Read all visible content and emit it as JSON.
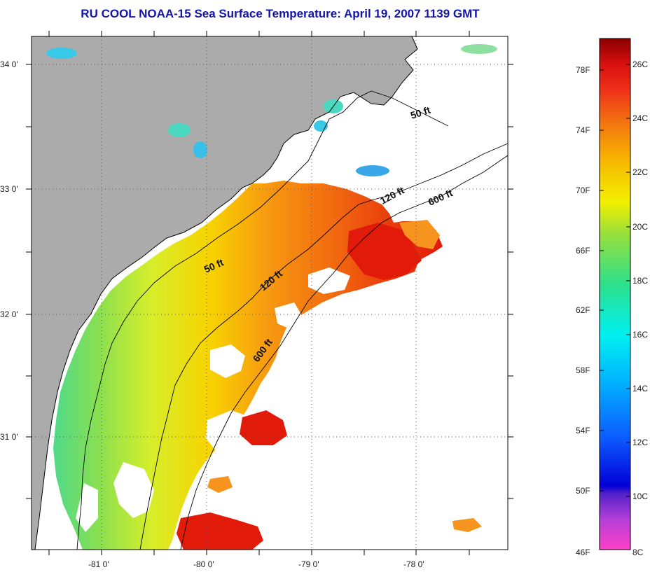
{
  "title": "RU COOL  NOAA-15  Sea Surface Temperature:  April 19, 2007 1139 GMT",
  "map": {
    "lon_labels": [
      "-81 0'",
      "-80 0'",
      "-79 0'",
      "-78 0'"
    ],
    "lat_labels": [
      "34 0'",
      "33 0'",
      "32 0'",
      "31 0'"
    ],
    "contour_labels": {
      "c50_north": "50 ft",
      "c120_north": "120 ft",
      "c600_north": "600 ft",
      "c50_mid": "50 ft",
      "c120_mid": "120 ft",
      "c600_mid": "600 ft"
    },
    "colors": {
      "land": "#ababab",
      "ocean_nodata": "#ffffff",
      "grid": "#555555"
    }
  },
  "colorbar": {
    "fahrenheit_labels": [
      "78F",
      "74F",
      "70F",
      "66F",
      "62F",
      "58F",
      "54F",
      "50F",
      "46F"
    ],
    "celsius_labels": [
      "26C",
      "24C",
      "22C",
      "20C",
      "18C",
      "16C",
      "14C",
      "12C",
      "10C",
      "8C"
    ],
    "range_c": [
      8,
      27
    ]
  }
}
